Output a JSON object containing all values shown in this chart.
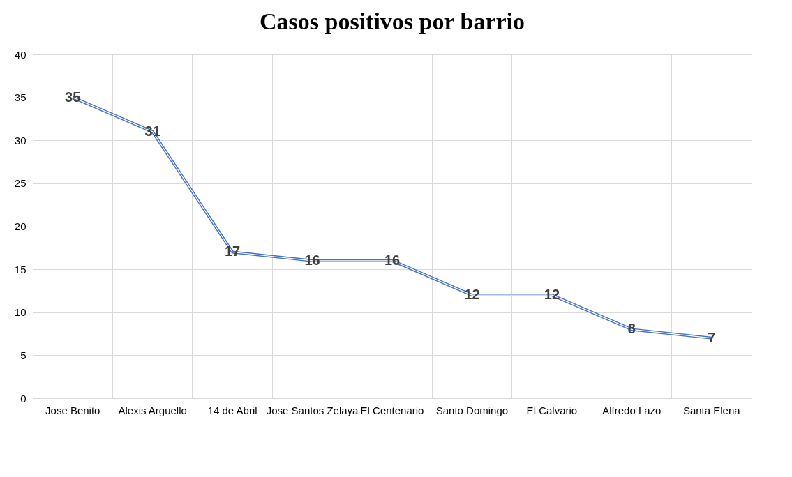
{
  "chart_data": {
    "type": "line",
    "title": "Casos positivos por barrio",
    "categories": [
      "Jose Benito",
      "Alexis Arguello",
      "14 de Abril",
      "Jose Santos Zelaya",
      "El Centenario",
      "Santo Domingo",
      "El Calvario",
      "Alfredo Lazo",
      "Santa Elena"
    ],
    "series": [
      {
        "color": "#4472c4",
        "values": [
          35,
          31,
          17,
          16,
          16,
          12,
          12,
          8,
          7
        ]
      }
    ],
    "ylim": [
      0,
      40
    ],
    "yticks": [
      0,
      5,
      10,
      15,
      20,
      25,
      30,
      35,
      40
    ],
    "grid": true,
    "data_labels": true,
    "marker": "none",
    "line_style": "solid",
    "legend": false
  }
}
